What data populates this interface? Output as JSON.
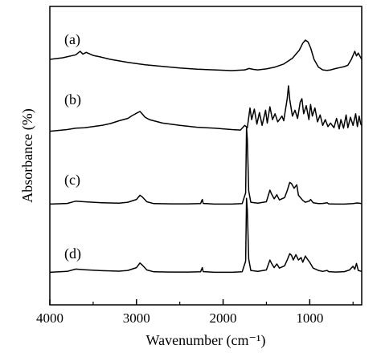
{
  "chart_data": {
    "type": "line",
    "xlabel": "Wavenumber (cm⁻¹)",
    "ylabel": "Absorbance (%)",
    "xlim": [
      4000,
      400
    ],
    "x_reversed": true,
    "x_ticks": [
      4000,
      3000,
      2000,
      1000
    ],
    "x_tick_labels": [
      "4000",
      "3000",
      "2000",
      "1000"
    ],
    "y_ticks_labeled": false,
    "grid": false,
    "stacked_offset_traces": true,
    "series": [
      {
        "name": "(a)",
        "points": [
          [
            4000,
            0.55
          ],
          [
            3850,
            0.62
          ],
          [
            3700,
            0.75
          ],
          [
            3650,
            0.9
          ],
          [
            3620,
            0.78
          ],
          [
            3580,
            0.85
          ],
          [
            3500,
            0.72
          ],
          [
            3420,
            0.66
          ],
          [
            3300,
            0.55
          ],
          [
            3100,
            0.42
          ],
          [
            2900,
            0.32
          ],
          [
            2700,
            0.25
          ],
          [
            2500,
            0.18
          ],
          [
            2300,
            0.13
          ],
          [
            2100,
            0.1
          ],
          [
            1900,
            0.07
          ],
          [
            1750,
            0.1
          ],
          [
            1700,
            0.16
          ],
          [
            1650,
            0.12
          ],
          [
            1600,
            0.1
          ],
          [
            1500,
            0.14
          ],
          [
            1400,
            0.22
          ],
          [
            1300,
            0.35
          ],
          [
            1200,
            0.6
          ],
          [
            1120,
            0.95
          ],
          [
            1080,
            1.25
          ],
          [
            1050,
            1.38
          ],
          [
            1020,
            1.3
          ],
          [
            990,
            1.05
          ],
          [
            950,
            0.55
          ],
          [
            900,
            0.22
          ],
          [
            850,
            0.1
          ],
          [
            800,
            0.08
          ],
          [
            760,
            0.1
          ],
          [
            700,
            0.16
          ],
          [
            650,
            0.2
          ],
          [
            600,
            0.24
          ],
          [
            560,
            0.3
          ],
          [
            520,
            0.55
          ],
          [
            480,
            0.9
          ],
          [
            460,
            0.7
          ],
          [
            440,
            0.82
          ],
          [
            400,
            0.55
          ]
        ]
      },
      {
        "name": "(b)",
        "points": [
          [
            4000,
            0.05
          ],
          [
            3800,
            0.12
          ],
          [
            3700,
            0.18
          ],
          [
            3600,
            0.2
          ],
          [
            3500,
            0.25
          ],
          [
            3400,
            0.3
          ],
          [
            3300,
            0.38
          ],
          [
            3200,
            0.5
          ],
          [
            3100,
            0.6
          ],
          [
            3050,
            0.72
          ],
          [
            3000,
            0.82
          ],
          [
            2960,
            0.9
          ],
          [
            2930,
            0.78
          ],
          [
            2900,
            0.65
          ],
          [
            2850,
            0.55
          ],
          [
            2700,
            0.4
          ],
          [
            2500,
            0.3
          ],
          [
            2300,
            0.22
          ],
          [
            2100,
            0.18
          ],
          [
            1900,
            0.12
          ],
          [
            1800,
            0.1
          ],
          [
            1750,
            0.3
          ],
          [
            1720,
            0.2
          ],
          [
            1690,
            1.05
          ],
          [
            1670,
            0.55
          ],
          [
            1640,
            1.0
          ],
          [
            1610,
            0.35
          ],
          [
            1580,
            0.85
          ],
          [
            1550,
            0.3
          ],
          [
            1510,
            0.95
          ],
          [
            1490,
            0.4
          ],
          [
            1460,
            1.1
          ],
          [
            1430,
            0.55
          ],
          [
            1400,
            0.8
          ],
          [
            1370,
            0.45
          ],
          [
            1320,
            0.7
          ],
          [
            1300,
            0.5
          ],
          [
            1260,
            1.45
          ],
          [
            1245,
            2.0
          ],
          [
            1230,
            1.4
          ],
          [
            1200,
            0.7
          ],
          [
            1170,
            0.95
          ],
          [
            1140,
            0.6
          ],
          [
            1110,
            1.3
          ],
          [
            1090,
            1.45
          ],
          [
            1070,
            0.8
          ],
          [
            1040,
            1.15
          ],
          [
            1010,
            0.55
          ],
          [
            990,
            1.2
          ],
          [
            970,
            0.7
          ],
          [
            940,
            1.05
          ],
          [
            910,
            0.45
          ],
          [
            880,
            0.75
          ],
          [
            850,
            0.3
          ],
          [
            820,
            0.55
          ],
          [
            790,
            0.25
          ],
          [
            760,
            0.4
          ],
          [
            720,
            0.2
          ],
          [
            690,
            0.6
          ],
          [
            660,
            0.15
          ],
          [
            640,
            0.55
          ],
          [
            610,
            0.18
          ],
          [
            580,
            0.75
          ],
          [
            560,
            0.2
          ],
          [
            530,
            0.65
          ],
          [
            500,
            0.3
          ],
          [
            470,
            0.8
          ],
          [
            450,
            0.25
          ],
          [
            430,
            0.7
          ],
          [
            410,
            0.35
          ],
          [
            400,
            0.3
          ]
        ]
      },
      {
        "name": "(c)",
        "points": [
          [
            4000,
            0.02
          ],
          [
            3800,
            0.05
          ],
          [
            3700,
            0.15
          ],
          [
            3600,
            0.12
          ],
          [
            3400,
            0.08
          ],
          [
            3200,
            0.06
          ],
          [
            3100,
            0.1
          ],
          [
            3000,
            0.22
          ],
          [
            2960,
            0.4
          ],
          [
            2930,
            0.32
          ],
          [
            2880,
            0.12
          ],
          [
            2800,
            0.04
          ],
          [
            2600,
            0.03
          ],
          [
            2400,
            0.03
          ],
          [
            2260,
            0.04
          ],
          [
            2240,
            0.22
          ],
          [
            2230,
            0.05
          ],
          [
            2100,
            0.02
          ],
          [
            1900,
            0.02
          ],
          [
            1780,
            0.04
          ],
          [
            1740,
            0.5
          ],
          [
            1730,
            3.3
          ],
          [
            1720,
            2.8
          ],
          [
            1705,
            0.6
          ],
          [
            1680,
            0.1
          ],
          [
            1600,
            0.06
          ],
          [
            1500,
            0.12
          ],
          [
            1460,
            0.62
          ],
          [
            1440,
            0.45
          ],
          [
            1410,
            0.25
          ],
          [
            1380,
            0.42
          ],
          [
            1350,
            0.2
          ],
          [
            1290,
            0.3
          ],
          [
            1260,
            0.6
          ],
          [
            1230,
            0.95
          ],
          [
            1210,
            0.9
          ],
          [
            1180,
            0.7
          ],
          [
            1150,
            0.85
          ],
          [
            1130,
            0.4
          ],
          [
            1080,
            0.18
          ],
          [
            1050,
            0.1
          ],
          [
            1000,
            0.16
          ],
          [
            990,
            0.22
          ],
          [
            960,
            0.08
          ],
          [
            900,
            0.04
          ],
          [
            850,
            0.05
          ],
          [
            800,
            0.08
          ],
          [
            780,
            0.03
          ],
          [
            700,
            0.02
          ],
          [
            600,
            0.02
          ],
          [
            500,
            0.04
          ],
          [
            450,
            0.07
          ],
          [
            400,
            0.04
          ]
        ]
      },
      {
        "name": "(d)",
        "points": [
          [
            4000,
            0.02
          ],
          [
            3800,
            0.06
          ],
          [
            3700,
            0.16
          ],
          [
            3600,
            0.13
          ],
          [
            3400,
            0.09
          ],
          [
            3200,
            0.07
          ],
          [
            3100,
            0.1
          ],
          [
            3000,
            0.22
          ],
          [
            2960,
            0.42
          ],
          [
            2930,
            0.32
          ],
          [
            2880,
            0.12
          ],
          [
            2800,
            0.04
          ],
          [
            2600,
            0.03
          ],
          [
            2400,
            0.03
          ],
          [
            2260,
            0.04
          ],
          [
            2240,
            0.22
          ],
          [
            2230,
            0.05
          ],
          [
            2100,
            0.02
          ],
          [
            1900,
            0.02
          ],
          [
            1780,
            0.04
          ],
          [
            1740,
            0.5
          ],
          [
            1730,
            3.2
          ],
          [
            1720,
            2.7
          ],
          [
            1705,
            0.6
          ],
          [
            1680,
            0.1
          ],
          [
            1600,
            0.06
          ],
          [
            1500,
            0.12
          ],
          [
            1460,
            0.55
          ],
          [
            1440,
            0.4
          ],
          [
            1410,
            0.22
          ],
          [
            1380,
            0.38
          ],
          [
            1350,
            0.2
          ],
          [
            1290,
            0.3
          ],
          [
            1260,
            0.55
          ],
          [
            1230,
            0.82
          ],
          [
            1210,
            0.75
          ],
          [
            1190,
            0.55
          ],
          [
            1160,
            0.78
          ],
          [
            1130,
            0.55
          ],
          [
            1100,
            0.65
          ],
          [
            1080,
            0.45
          ],
          [
            1050,
            0.72
          ],
          [
            1030,
            0.6
          ],
          [
            1000,
            0.45
          ],
          [
            960,
            0.2
          ],
          [
            900,
            0.1
          ],
          [
            850,
            0.06
          ],
          [
            800,
            0.1
          ],
          [
            780,
            0.05
          ],
          [
            700,
            0.03
          ],
          [
            600,
            0.05
          ],
          [
            540,
            0.12
          ],
          [
            500,
            0.28
          ],
          [
            480,
            0.15
          ],
          [
            460,
            0.4
          ],
          [
            440,
            0.1
          ],
          [
            400,
            0.06
          ]
        ]
      }
    ]
  }
}
